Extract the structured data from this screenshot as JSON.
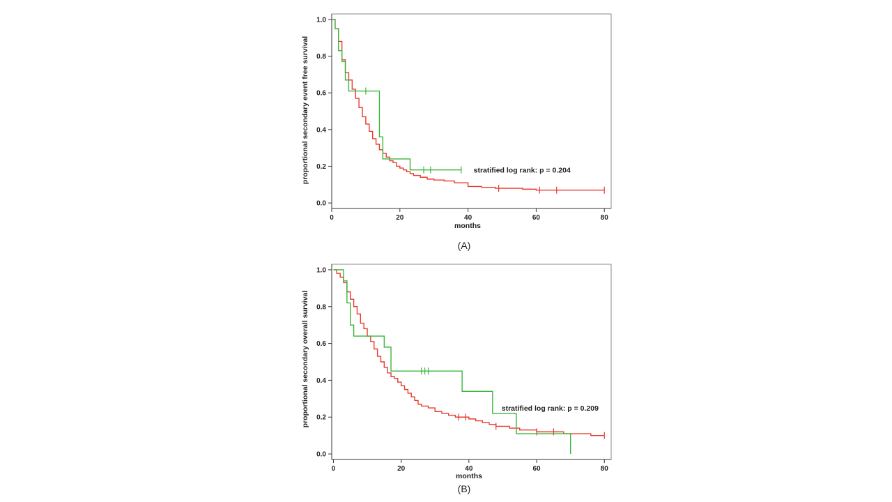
{
  "chart_data": [
    {
      "type": "line",
      "panel_label": "(A)",
      "xlabel": "months",
      "ylabel": "proportional secondary event free survival",
      "xlim": [
        0,
        82
      ],
      "ylim": [
        -0.03,
        1.03
      ],
      "xticks": [
        "0",
        "20",
        "40",
        "60",
        "80"
      ],
      "xtick_values": [
        0,
        20,
        40,
        60,
        80
      ],
      "yticks": [
        "0.0",
        "0.2",
        "0.4",
        "0.6",
        "0.8",
        "1.0"
      ],
      "ytick_values": [
        0,
        0.2,
        0.4,
        0.6,
        0.8,
        1.0
      ],
      "annotation": "stratified log rank: p = 0.204",
      "annotation_at": [
        40,
        0.18
      ],
      "series": [
        {
          "color": "#e83a2e",
          "x": [
            0,
            1,
            2,
            3,
            4,
            5,
            6,
            7,
            8,
            9,
            10,
            11,
            12,
            13,
            14,
            15,
            16,
            17,
            18,
            19,
            20,
            21,
            22,
            23,
            24,
            26,
            28,
            30,
            33,
            36,
            40,
            44,
            48,
            52,
            56,
            60,
            66,
            80
          ],
          "y": [
            1.0,
            0.95,
            0.88,
            0.78,
            0.71,
            0.67,
            0.62,
            0.57,
            0.52,
            0.47,
            0.43,
            0.39,
            0.35,
            0.32,
            0.29,
            0.27,
            0.25,
            0.23,
            0.22,
            0.2,
            0.19,
            0.18,
            0.17,
            0.16,
            0.15,
            0.14,
            0.13,
            0.125,
            0.12,
            0.11,
            0.09,
            0.085,
            0.08,
            0.08,
            0.075,
            0.07,
            0.07,
            0.07
          ],
          "censor_x": [
            49,
            61,
            66,
            80
          ]
        },
        {
          "color": "#3cb53c",
          "x": [
            0,
            1,
            2,
            3,
            4,
            5,
            14,
            15,
            16,
            23,
            38
          ],
          "y": [
            1.0,
            0.95,
            0.83,
            0.77,
            0.67,
            0.61,
            0.36,
            0.24,
            0.24,
            0.18,
            0.18
          ],
          "censor_x": [
            10,
            27,
            29,
            38
          ]
        }
      ]
    },
    {
      "type": "line",
      "panel_label": "(B)",
      "xlabel": "months",
      "ylabel": "proportional secondary overall survival",
      "xlim": [
        -0.5,
        82
      ],
      "ylim": [
        -0.03,
        1.03
      ],
      "xticks": [
        "0",
        "20",
        "40",
        "60",
        "80"
      ],
      "xtick_values": [
        0,
        20,
        40,
        60,
        80
      ],
      "yticks": [
        "0.0",
        "0.2",
        "0.4",
        "0.6",
        "0.8",
        "1.0"
      ],
      "ytick_values": [
        0,
        0.2,
        0.4,
        0.6,
        0.8,
        1.0
      ],
      "annotation": "stratified log rank: p = 0.209",
      "annotation_at": [
        48,
        0.25
      ],
      "series": [
        {
          "color": "#e83a2e",
          "x": [
            0,
            1,
            2,
            3,
            4,
            5,
            6,
            7,
            8,
            9,
            10,
            11,
            12,
            13,
            14,
            15,
            16,
            17,
            18,
            19,
            20,
            21,
            22,
            23,
            24,
            25,
            26,
            28,
            30,
            32,
            34,
            36,
            38,
            40,
            42,
            44,
            46,
            48,
            50,
            52,
            55,
            58,
            60,
            64,
            68,
            72,
            76,
            80
          ],
          "y": [
            1.0,
            0.98,
            0.96,
            0.93,
            0.88,
            0.84,
            0.8,
            0.76,
            0.71,
            0.68,
            0.64,
            0.61,
            0.57,
            0.53,
            0.5,
            0.47,
            0.44,
            0.42,
            0.41,
            0.39,
            0.37,
            0.35,
            0.33,
            0.31,
            0.29,
            0.27,
            0.26,
            0.25,
            0.23,
            0.22,
            0.21,
            0.2,
            0.2,
            0.19,
            0.18,
            0.17,
            0.16,
            0.15,
            0.15,
            0.14,
            0.13,
            0.13,
            0.12,
            0.12,
            0.11,
            0.11,
            0.1,
            0.1
          ],
          "censor_x": [
            37,
            39,
            48,
            60,
            65,
            80
          ]
        },
        {
          "color": "#3cb53c",
          "x": [
            0,
            2,
            3,
            4,
            5,
            6,
            10,
            13,
            15,
            17,
            38,
            47,
            54,
            70,
            70.01
          ],
          "y": [
            1.0,
            1.0,
            0.94,
            0.82,
            0.7,
            0.64,
            0.64,
            0.64,
            0.58,
            0.45,
            0.34,
            0.22,
            0.11,
            0.11,
            0.0
          ],
          "censor_x": [
            26,
            27,
            28
          ]
        }
      ]
    }
  ]
}
